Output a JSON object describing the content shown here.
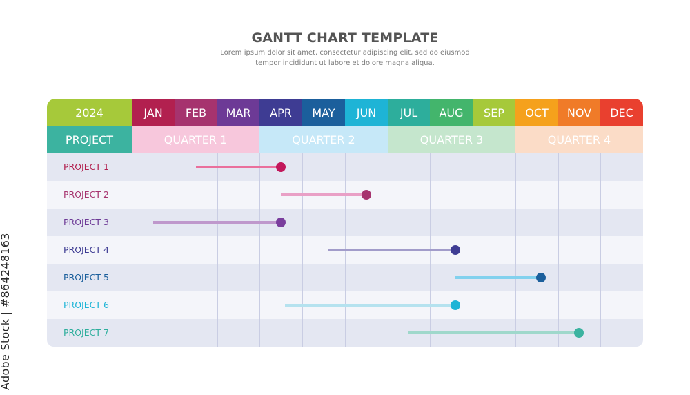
{
  "header": {
    "title": "GANTT CHART TEMPLATE",
    "subtitle_line1": "Lorem ipsum dolor sit amet, consectetur adipiscing elit, sed do eiusmod",
    "subtitle_line2": "tempor incididunt ut labore et dolore magna aliqua."
  },
  "table": {
    "year": "2024",
    "project_header": "PROJECT",
    "months": [
      {
        "label": "JAN",
        "color": "#b2204f"
      },
      {
        "label": "FEB",
        "color": "#a6336e"
      },
      {
        "label": "MAR",
        "color": "#6d3a96"
      },
      {
        "label": "APR",
        "color": "#3e3c93"
      },
      {
        "label": "MAY",
        "color": "#1b5f9c"
      },
      {
        "label": "JUN",
        "color": "#1eb4d6"
      },
      {
        "label": "JUL",
        "color": "#2dae9c"
      },
      {
        "label": "AUG",
        "color": "#43b56c"
      },
      {
        "label": "SEP",
        "color": "#a6c93a"
      },
      {
        "label": "OCT",
        "color": "#f5a11c"
      },
      {
        "label": "NOV",
        "color": "#f07b28"
      },
      {
        "label": "DEC",
        "color": "#e9402f"
      }
    ],
    "quarters": [
      {
        "label": "QUARTER 1",
        "bg": "#f7c7dc"
      },
      {
        "label": "QUARTER 2",
        "bg": "#c6e8f8"
      },
      {
        "label": "QUARTER 3",
        "bg": "#c5e6cd"
      },
      {
        "label": "QUARTER 4",
        "bg": "#fbdcc7"
      }
    ]
  },
  "chart_data": {
    "type": "gantt",
    "title": "GANTT CHART TEMPLATE",
    "year": "2024",
    "x_unit": "month index (0 = start of JAN, 12 = end of DEC)",
    "tasks": [
      {
        "name": "PROJECT 1",
        "start": 1.5,
        "end": 3.5,
        "color": "#ea6f9c",
        "label_color": "#b2204f",
        "dot_color": "#c2185b"
      },
      {
        "name": "PROJECT 2",
        "start": 3.5,
        "end": 5.5,
        "color": "#e9a0c6",
        "label_color": "#a6336e",
        "dot_color": "#a6336e"
      },
      {
        "name": "PROJECT 3",
        "start": 0.5,
        "end": 3.5,
        "color": "#bf98cc",
        "label_color": "#6d3a96",
        "dot_color": "#7a3e9d"
      },
      {
        "name": "PROJECT 4",
        "start": 4.6,
        "end": 7.6,
        "color": "#a29cca",
        "label_color": "#3e3c93",
        "dot_color": "#3e3c93"
      },
      {
        "name": "PROJECT 5",
        "start": 7.6,
        "end": 9.6,
        "color": "#82d1ee",
        "label_color": "#1b5f9c",
        "dot_color": "#1b5f9c"
      },
      {
        "name": "PROJECT 6",
        "start": 3.6,
        "end": 7.6,
        "color": "#b5e2ef",
        "label_color": "#1eb4d6",
        "dot_color": "#1eb4d6"
      },
      {
        "name": "PROJECT 7",
        "start": 6.5,
        "end": 10.5,
        "color": "#9fd8cb",
        "label_color": "#2dae9c",
        "dot_color": "#3cb3a0"
      }
    ]
  },
  "watermark": "Adobe Stock | #864248163"
}
